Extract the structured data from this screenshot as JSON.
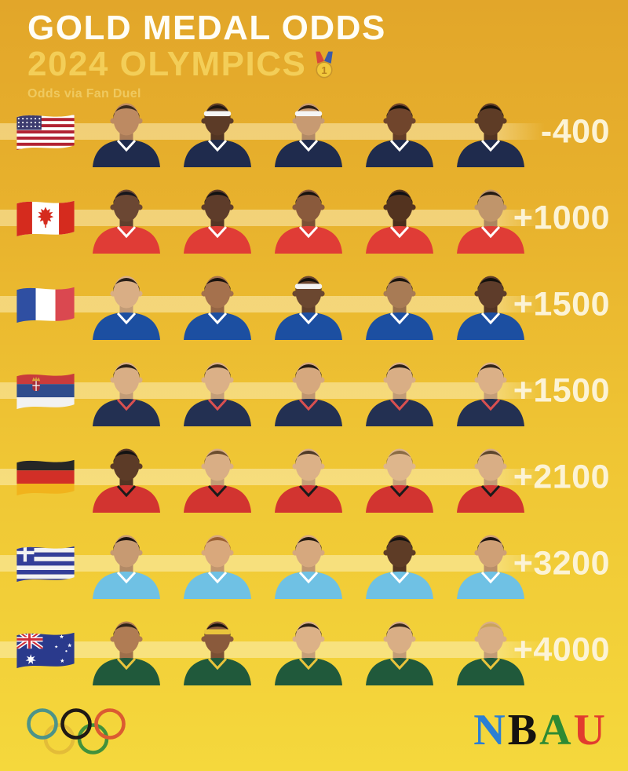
{
  "header": {
    "title": "GOLD MEDAL ODDS",
    "subtitle": "2024 OLYMPICS",
    "medal_icon": "gold-medal-icon",
    "source": "Odds via Fan Duel"
  },
  "colors": {
    "bg_top": "#E2A62A",
    "bg_bottom": "#F5D83C",
    "title": "#FFFEF6",
    "subtitle": "#F3CE58",
    "source": "#EFC95F",
    "odds_text": "#FCF3D5",
    "row_band": "rgba(255,247,208,0.46)"
  },
  "chart_data": {
    "type": "table",
    "title": "GOLD MEDAL ODDS",
    "subtitle": "2024 OLYMPICS",
    "source": "Odds via Fan Duel",
    "categories": [
      "United States",
      "Canada",
      "France",
      "Serbia",
      "Germany",
      "Greece",
      "Australia"
    ],
    "values": [
      "-400",
      "+1000",
      "+1500",
      "+1500",
      "+2100",
      "+3200",
      "+4000"
    ]
  },
  "teams": [
    {
      "country": "United States",
      "flag": "us",
      "odds": "-400",
      "jersey": "#1F2B4D",
      "jersey_trim": "#FFFFFF",
      "flag_colors": {
        "red": "#B22334",
        "white": "#FFFFFF",
        "canton": "#3C3B6E"
      },
      "players": [
        {
          "skin": "#BD8A62",
          "hair": "#3A2A1E",
          "headband": null
        },
        {
          "skin": "#5C3B27",
          "hair": "#1E1511",
          "headband": "#F5F5F5"
        },
        {
          "skin": "#C79A72",
          "hair": "#2A1E16",
          "headband": "#F5F5F5"
        },
        {
          "skin": "#70452C",
          "hair": "#15100C",
          "headband": null
        },
        {
          "skin": "#5E3C26",
          "hair": "#15100C",
          "headband": null
        }
      ]
    },
    {
      "country": "Canada",
      "flag": "ca",
      "odds": "+1000",
      "jersey": "#E03C36",
      "jersey_trim": "#FFFFFF",
      "flag_colors": {
        "red": "#D52B1E",
        "white": "#FFFFFF"
      },
      "players": [
        {
          "skin": "#6B4733",
          "hair": "#16161C",
          "headband": null
        },
        {
          "skin": "#5E3C2A",
          "hair": "#121212",
          "headband": null
        },
        {
          "skin": "#8A5A3C",
          "hair": "#17120E",
          "headband": null
        },
        {
          "skin": "#53331F",
          "hair": "#101015",
          "headband": null
        },
        {
          "skin": "#C0956B",
          "hair": "#241A12",
          "headband": null
        }
      ]
    },
    {
      "country": "France",
      "flag": "fr",
      "odds": "+1500",
      "jersey": "#1C4FA1",
      "jersey_trim": "#FFFFFF",
      "flag_colors": {
        "blue": "#2F4FA2",
        "white": "#FFFFFF",
        "red": "#DA4850"
      },
      "players": [
        {
          "skin": "#D9AE85",
          "hair": "#2B2018",
          "headband": null
        },
        {
          "skin": "#A5714D",
          "hair": "#1A130E",
          "headband": null
        },
        {
          "skin": "#6B4730",
          "hair": "#13100C",
          "headband": "#F2F2F2"
        },
        {
          "skin": "#A87B55",
          "hair": "#1A140E",
          "headband": null
        },
        {
          "skin": "#5E3C2A",
          "hair": "#13100C",
          "headband": null
        }
      ]
    },
    {
      "country": "Serbia",
      "flag": "rs",
      "odds": "+1500",
      "jersey": "#233052",
      "jersey_trim": "#D95050",
      "flag_colors": {
        "red": "#C93B3B",
        "blue": "#2F4C8C",
        "white": "#F2F2F2",
        "crest_gold": "#D9A43B",
        "crest_red": "#A8303A"
      },
      "players": [
        {
          "skin": "#D9AE85",
          "hair": "#2B2018",
          "headband": null
        },
        {
          "skin": "#DBB087",
          "hair": "#3B2C1E",
          "headband": null
        },
        {
          "skin": "#D6A87E",
          "hair": "#241A12",
          "headband": null
        },
        {
          "skin": "#D9AE85",
          "hair": "#2B2018",
          "headband": null
        },
        {
          "skin": "#DBB087",
          "hair": "#33261A",
          "headband": null
        }
      ]
    },
    {
      "country": "Germany",
      "flag": "de",
      "odds": "+2100",
      "jersey": "#D23430",
      "jersey_trim": "#1A1A1A",
      "flag_colors": {
        "black": "#262626",
        "red": "#D22F27",
        "gold": "#F1B31C"
      },
      "players": [
        {
          "skin": "#5C3B27",
          "hair": "#121212",
          "headband": null
        },
        {
          "skin": "#D9AE85",
          "hair": "#6B4C2E",
          "headband": null
        },
        {
          "skin": "#DCB187",
          "hair": "#4F3A26",
          "headband": null
        },
        {
          "skin": "#DEB68C",
          "hair": "#8A6B43",
          "headband": null
        },
        {
          "skin": "#D9AE85",
          "hair": "#5C452C",
          "headband": null
        }
      ]
    },
    {
      "country": "Greece",
      "flag": "gr",
      "odds": "+3200",
      "jersey": "#6FC1E4",
      "jersey_trim": "#FFFFFF",
      "flag_colors": {
        "blue": "#333E99",
        "white": "#F2F2F2"
      },
      "players": [
        {
          "skin": "#C79A72",
          "hair": "#1E1511",
          "headband": null
        },
        {
          "skin": "#D9A87C",
          "hair": "#9A5F33",
          "headband": null
        },
        {
          "skin": "#D6A87E",
          "hair": "#241A12",
          "headband": null
        },
        {
          "skin": "#5E3C26",
          "hair": "#121212",
          "headband": null
        },
        {
          "skin": "#CFA076",
          "hair": "#1E1511",
          "headband": null
        }
      ]
    },
    {
      "country": "Australia",
      "flag": "au",
      "odds": "+4000",
      "jersey": "#20593B",
      "jersey_trim": "#E9C43C",
      "flag_colors": {
        "blue": "#2A3A8C",
        "white": "#FFFFFF",
        "red": "#CE2B37"
      },
      "players": [
        {
          "skin": "#B07C54",
          "hair": "#2E2219",
          "headband": null
        },
        {
          "skin": "#8A5A3C",
          "hair": "#17120E",
          "headband": "#E9C43C"
        },
        {
          "skin": "#DCB187",
          "hair": "#2B2018",
          "headband": null
        },
        {
          "skin": "#D9AE85",
          "hair": "#3A2A1E",
          "headband": null
        },
        {
          "skin": "#D9AE85",
          "hair": "#C9A35C",
          "headband": null
        }
      ]
    }
  ],
  "footer": {
    "olympic_rings": {
      "icon": "olympic-rings-icon",
      "colors": [
        "#4D9388",
        "#201A15",
        "#DB5B31",
        "#E3BC38",
        "#42913B"
      ]
    },
    "brand": {
      "letters": [
        {
          "char": "N",
          "color": "#2B7FD4"
        },
        {
          "char": "B",
          "color": "#151210"
        },
        {
          "char": "A",
          "color": "#2E8A33"
        },
        {
          "char": "U",
          "color": "#E23B2E"
        }
      ]
    }
  }
}
